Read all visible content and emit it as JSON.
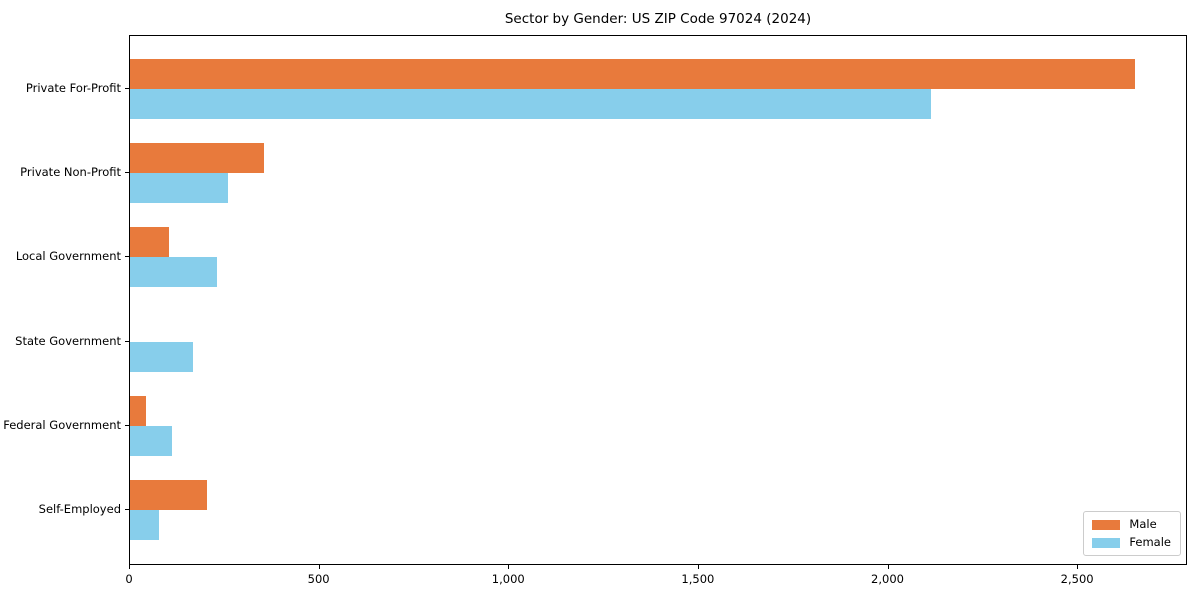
{
  "chart_data": {
    "type": "bar",
    "orientation": "horizontal",
    "title": "Sector by Gender: US ZIP Code 97024 (2024)",
    "xlabel": "",
    "ylabel": "",
    "categories": [
      "Private For-Profit",
      "Private Non-Profit",
      "Local Government",
      "State Government",
      "Federal Government",
      "Self-Employed"
    ],
    "series": [
      {
        "name": "Male",
        "color": "#e87a3c",
        "values": [
          2650,
          353,
          103,
          0,
          42,
          203
        ]
      },
      {
        "name": "Female",
        "color": "#87ceeb",
        "values": [
          2112,
          258,
          229,
          166,
          111,
          76
        ]
      }
    ],
    "xlim": [
      0,
      2787
    ],
    "x_ticks": [
      0,
      500,
      1000,
      1500,
      2000,
      2500
    ],
    "x_tick_labels": [
      "0",
      "500",
      "1,000",
      "1,500",
      "2,000",
      "2,500"
    ],
    "grid": false,
    "legend_position": "lower right",
    "legend_title": ""
  },
  "colors": {
    "male": "#e87a3c",
    "female": "#87ceeb",
    "spine": "#000000",
    "legend_border": "#cccccc",
    "background": "#ffffff"
  }
}
